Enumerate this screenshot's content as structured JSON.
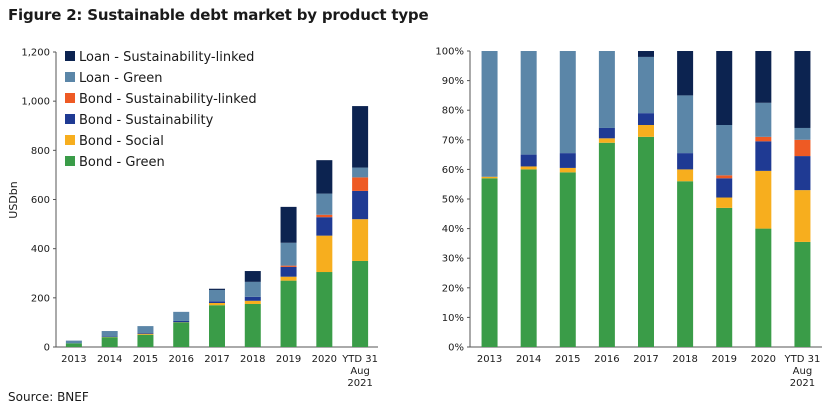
{
  "figure": {
    "title": "Figure 2: Sustainable debt market by product type",
    "source": "Source: BNEF"
  },
  "colors": {
    "Bond - Green": "#3a9c48",
    "Bond - Social": "#f7ae1e",
    "Bond - Sustainability": "#1f3a93",
    "Bond - Sustainability-linked": "#ee5a24",
    "Loan - Green": "#5b86a8",
    "Loan - Sustainability-linked": "#0c2350"
  },
  "chart_data": [
    {
      "type": "bar",
      "stacked": true,
      "categories": [
        "2013",
        "2014",
        "2015",
        "2016",
        "2017",
        "2018",
        "2019",
        "2020",
        "YTD 31 Aug 2021"
      ],
      "ylabel": "USDbn",
      "ylim": [
        0,
        1200
      ],
      "yticks": [
        "0",
        "200",
        "400",
        "600",
        "800",
        "1,000",
        "1,200"
      ],
      "legend_position": "top-left",
      "legend_order": [
        "Loan - Sustainability-linked",
        "Loan - Green",
        "Bond - Sustainability-linked",
        "Bond - Sustainability",
        "Bond - Social",
        "Bond - Green"
      ],
      "series": [
        {
          "name": "Bond - Green",
          "values": [
            15,
            40,
            50,
            100,
            170,
            175,
            270,
            305,
            350
          ]
        },
        {
          "name": "Bond - Social",
          "values": [
            0,
            1,
            4,
            1,
            9,
            13,
            16,
            148,
            170
          ]
        },
        {
          "name": "Bond - Sustainability",
          "values": [
            0,
            2,
            3,
            5,
            7,
            16,
            40,
            75,
            115
          ]
        },
        {
          "name": "Bond - Sustainability-linked",
          "values": [
            0,
            0,
            0,
            0,
            0,
            0,
            5,
            10,
            55
          ]
        },
        {
          "name": "Loan - Green",
          "values": [
            11,
            22,
            28,
            37,
            46,
            61,
            93,
            86,
            40
          ]
        },
        {
          "name": "Loan - Sustainability-linked",
          "values": [
            0,
            0,
            0,
            0,
            5,
            44,
            146,
            136,
            250
          ]
        }
      ]
    },
    {
      "type": "bar",
      "stacked": true,
      "percent": true,
      "categories": [
        "2013",
        "2014",
        "2015",
        "2016",
        "2017",
        "2018",
        "2019",
        "2020",
        "YTD 31 Aug 2021"
      ],
      "ylim": [
        0,
        100
      ],
      "yticks": [
        "0%",
        "10%",
        "20%",
        "30%",
        "40%",
        "50%",
        "60%",
        "70%",
        "80%",
        "90%",
        "100%"
      ],
      "series": [
        {
          "name": "Bond - Green",
          "values": [
            57,
            60,
            59,
            69,
            71,
            56,
            47,
            40,
            35.5
          ]
        },
        {
          "name": "Bond - Social",
          "values": [
            0.5,
            1,
            1.5,
            1.5,
            4,
            4,
            3.5,
            19.5,
            17.5
          ]
        },
        {
          "name": "Bond - Sustainability",
          "values": [
            0,
            4,
            5,
            3.5,
            4,
            5.5,
            6.5,
            10,
            11.5
          ]
        },
        {
          "name": "Bond - Sustainability-linked",
          "values": [
            0,
            0,
            0,
            0,
            0,
            0,
            1,
            1.5,
            5.5
          ]
        },
        {
          "name": "Loan - Green",
          "values": [
            42.5,
            35,
            34.5,
            26,
            19,
            19.5,
            17,
            11.5,
            4
          ]
        },
        {
          "name": "Loan - Sustainability-linked",
          "values": [
            0,
            0,
            0,
            0,
            2,
            15,
            25,
            17.5,
            26
          ]
        }
      ]
    }
  ]
}
